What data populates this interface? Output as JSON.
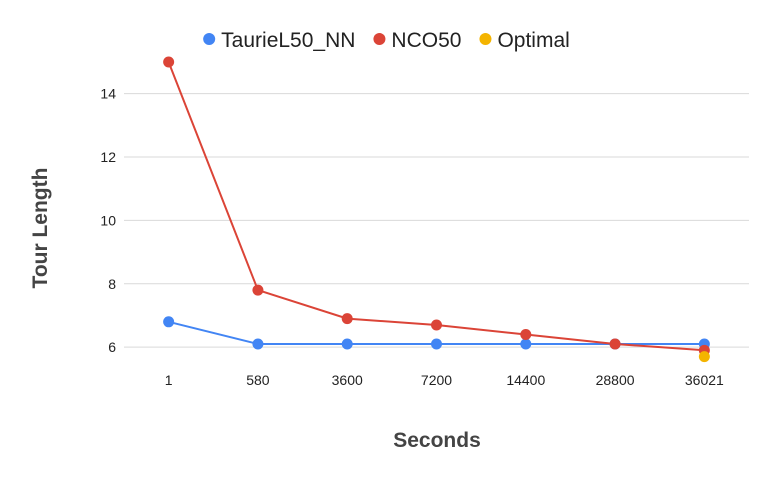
{
  "chart_data": {
    "type": "line",
    "title": "",
    "xlabel": "Seconds",
    "ylabel": "Tour Length",
    "categories": [
      "1",
      "580",
      "3600",
      "7200",
      "14400",
      "28800",
      "36021"
    ],
    "ylim": [
      5.5,
      15
    ],
    "yticks": [
      6,
      8,
      10,
      12,
      14
    ],
    "grid": true,
    "legend_position": "top",
    "series": [
      {
        "name": "TaurieL50_NN",
        "color": "#4285F4",
        "values": [
          6.8,
          6.1,
          6.1,
          6.1,
          6.1,
          6.1,
          6.1
        ]
      },
      {
        "name": "NCO50",
        "color": "#DB4437",
        "values": [
          15.0,
          7.8,
          6.9,
          6.7,
          6.4,
          6.1,
          5.9
        ]
      },
      {
        "name": "Optimal",
        "color": "#F4B400",
        "values": [
          null,
          null,
          null,
          null,
          null,
          null,
          5.7
        ]
      }
    ]
  }
}
